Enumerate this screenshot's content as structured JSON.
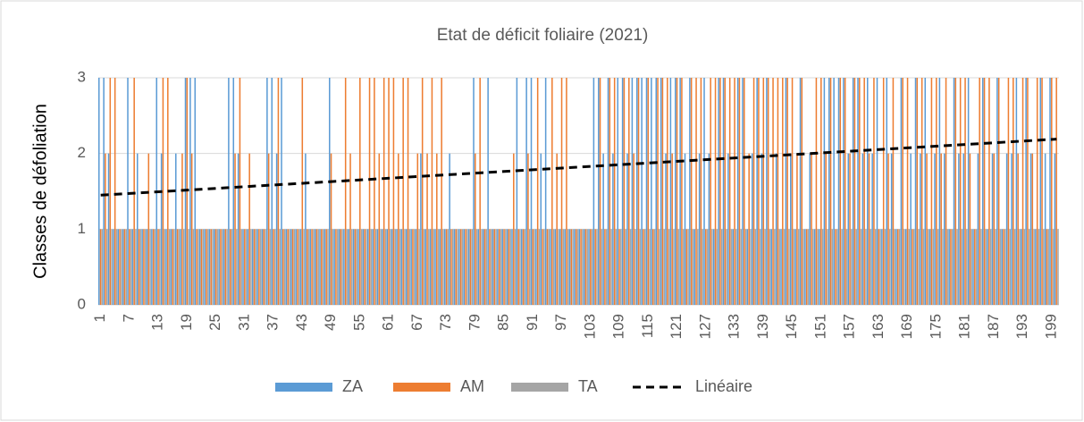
{
  "chart_data": {
    "type": "bar",
    "title": "Etat de déficit foliaire (2021)",
    "y_label": "Classes de défoliation",
    "categories": [
      1,
      null,
      null,
      null,
      null,
      null,
      7,
      null,
      null,
      null,
      null,
      null,
      13,
      null,
      null,
      null,
      null,
      null,
      19,
      null,
      null,
      null,
      null,
      null,
      25,
      null,
      null,
      null,
      null,
      null,
      31,
      null,
      null,
      null,
      null,
      null,
      37,
      null,
      null,
      null,
      null,
      null,
      43,
      null,
      null,
      null,
      null,
      null,
      49,
      null,
      null,
      null,
      null,
      null,
      55,
      null,
      null,
      null,
      null,
      null,
      61,
      null,
      null,
      null,
      null,
      null,
      67,
      null,
      null,
      null,
      null,
      null,
      73,
      null,
      null,
      null,
      null,
      null,
      79,
      null,
      null,
      null,
      null,
      null,
      85,
      null,
      null,
      null,
      null,
      null,
      91,
      null,
      null,
      null,
      null,
      null,
      97,
      null,
      null,
      null,
      null,
      null,
      103,
      null,
      null,
      null,
      null,
      null,
      109,
      null,
      null,
      null,
      null,
      null,
      115,
      null,
      null,
      null,
      null,
      null,
      121,
      null,
      null,
      null,
      null,
      null,
      127,
      null,
      null,
      null,
      null,
      null,
      133,
      null,
      null,
      null,
      null,
      null,
      139,
      null,
      null,
      null,
      null,
      null,
      145,
      null,
      null,
      null,
      null,
      null,
      151,
      null,
      null,
      null,
      null,
      null,
      157,
      null,
      null,
      null,
      null,
      null,
      163,
      null,
      null,
      null,
      null,
      null,
      169,
      null,
      null,
      null,
      null,
      null,
      175,
      null,
      null,
      null,
      null,
      null,
      181,
      null,
      null,
      null,
      null,
      null,
      187,
      null,
      null,
      null,
      null,
      null,
      193,
      null,
      null,
      null,
      null,
      null,
      199,
      null
    ],
    "series": [
      {
        "name": "ZA",
        "color": "#5b9bd5",
        "values": [
          3,
          3,
          2,
          1,
          1,
          1,
          3,
          1,
          2,
          1,
          1,
          1,
          3,
          2,
          1,
          1,
          2,
          1,
          3,
          3,
          3,
          1,
          1,
          1,
          1,
          1,
          1,
          3,
          3,
          2,
          1,
          1,
          1,
          1,
          1,
          3,
          3,
          2,
          3,
          1,
          1,
          1,
          1,
          2,
          1,
          1,
          1,
          1,
          3,
          1,
          1,
          1,
          1,
          1,
          1,
          1,
          1,
          1,
          1,
          1,
          1,
          1,
          1,
          1,
          1,
          1,
          1,
          2,
          1,
          1,
          1,
          1,
          1,
          2,
          1,
          1,
          1,
          1,
          3,
          1,
          1,
          3,
          1,
          1,
          1,
          1,
          1,
          3,
          1,
          3,
          3,
          1,
          2,
          3,
          1,
          1,
          1,
          1,
          1,
          1,
          1,
          1,
          1,
          3,
          3,
          2,
          3,
          2,
          3,
          3,
          2,
          3,
          3,
          3,
          3,
          3,
          3,
          3,
          2,
          3,
          3,
          3,
          2,
          3,
          1,
          2,
          3,
          2,
          1,
          3,
          3,
          2,
          1,
          3,
          3,
          1,
          2,
          3,
          2,
          3,
          1,
          2,
          1,
          3,
          2,
          1,
          3,
          1,
          2,
          1,
          1,
          3,
          3,
          3,
          3,
          3,
          2,
          3,
          3,
          2,
          3,
          2,
          3,
          1,
          3,
          2,
          1,
          3,
          1,
          2,
          3,
          2,
          3,
          1,
          2,
          3,
          2,
          1,
          3,
          2,
          2,
          3,
          1,
          2,
          3,
          1,
          2,
          3,
          1,
          2,
          2,
          3,
          1,
          3,
          2,
          1,
          3,
          2,
          3,
          2
        ]
      },
      {
        "name": "AM",
        "color": "#ed7d31",
        "values": [
          1,
          2,
          3,
          3,
          1,
          1,
          1,
          3,
          1,
          1,
          2,
          1,
          1,
          3,
          3,
          1,
          1,
          2,
          3,
          2,
          1,
          1,
          1,
          1,
          1,
          1,
          1,
          1,
          2,
          3,
          1,
          2,
          1,
          1,
          1,
          2,
          1,
          3,
          1,
          1,
          1,
          1,
          3,
          1,
          1,
          1,
          1,
          1,
          2,
          1,
          1,
          3,
          2,
          1,
          3,
          1,
          3,
          3,
          2,
          3,
          3,
          3,
          2,
          3,
          3,
          1,
          2,
          3,
          2,
          3,
          2,
          3,
          1,
          1,
          1,
          1,
          1,
          1,
          2,
          3,
          1,
          1,
          1,
          1,
          1,
          1,
          2,
          1,
          1,
          2,
          1,
          3,
          1,
          1,
          3,
          2,
          3,
          3,
          1,
          1,
          1,
          1,
          1,
          1,
          3,
          1,
          3,
          3,
          1,
          3,
          3,
          2,
          3,
          1,
          3,
          1,
          3,
          3,
          3,
          2,
          3,
          3,
          1,
          3,
          3,
          3,
          1,
          3,
          3,
          3,
          3,
          3,
          3,
          3,
          3,
          2,
          3,
          3,
          3,
          3,
          3,
          3,
          3,
          3,
          3,
          2,
          3,
          1,
          2,
          3,
          3,
          2,
          3,
          1,
          3,
          3,
          2,
          3,
          3,
          3,
          2,
          3,
          1,
          3,
          2,
          3,
          1,
          3,
          3,
          1,
          3,
          3,
          2,
          3,
          3,
          2,
          3,
          1,
          3,
          3,
          3,
          2,
          1,
          3,
          3,
          3,
          2,
          3,
          1,
          3,
          3,
          2,
          3,
          3,
          2,
          3,
          3,
          1,
          3,
          3
        ]
      },
      {
        "name": "TA",
        "color": "#a5a5a5",
        "values": [
          1,
          1,
          1,
          1,
          1,
          1,
          1,
          1,
          1,
          1,
          1,
          1,
          1,
          1,
          1,
          1,
          1,
          1,
          1,
          1,
          1,
          1,
          1,
          1,
          1,
          1,
          1,
          1,
          1,
          1,
          1,
          1,
          1,
          1,
          1,
          1,
          1,
          1,
          1,
          1,
          1,
          1,
          1,
          1,
          1,
          1,
          1,
          1,
          1,
          1,
          1,
          1,
          1,
          1,
          1,
          1,
          1,
          1,
          1,
          1,
          1,
          1,
          1,
          1,
          1,
          1,
          1,
          1,
          1,
          1,
          1,
          1,
          1,
          1,
          1,
          1,
          1,
          1,
          1,
          1,
          1,
          1,
          1,
          1,
          1,
          1,
          1,
          1,
          1,
          1,
          1,
          1,
          1,
          1,
          1,
          1,
          1,
          1,
          1,
          1,
          1,
          1,
          1,
          1,
          1,
          1,
          1,
          1,
          1,
          1,
          1,
          1,
          1,
          1,
          1,
          1,
          1,
          1,
          1,
          1,
          1,
          1,
          1,
          1,
          1,
          1,
          1,
          1,
          1,
          1,
          1,
          1,
          1,
          1,
          1,
          1,
          1,
          1,
          1,
          1,
          1,
          1,
          1,
          1,
          1,
          1,
          1,
          1,
          1,
          1,
          1,
          1,
          1,
          1,
          1,
          1,
          1,
          1,
          1,
          1,
          1,
          1,
          1,
          1,
          1,
          1,
          1,
          1,
          1,
          1,
          1,
          1,
          1,
          1,
          1,
          1,
          1,
          1,
          1,
          1,
          1,
          1,
          1,
          1,
          1,
          1,
          1,
          1,
          1,
          1,
          1,
          1,
          1,
          1,
          1,
          1,
          1,
          1,
          1,
          1
        ]
      }
    ],
    "trendline": {
      "name": "Linéaire",
      "color": "#000000",
      "start": 1.45,
      "end": 2.19
    },
    "ylim": [
      0,
      3
    ],
    "yticks": [
      0,
      1,
      2,
      3
    ],
    "grid": true
  }
}
